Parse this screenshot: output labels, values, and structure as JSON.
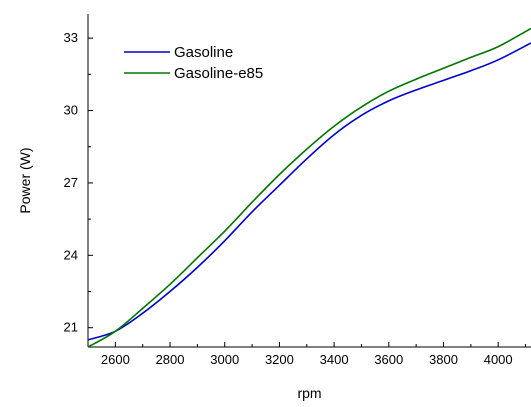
{
  "chart_data": {
    "type": "line",
    "xlabel": "rpm",
    "ylabel": "Power (W)",
    "xlim": [
      2500,
      4120
    ],
    "ylim": [
      20.2,
      34.0
    ],
    "xticks": [
      2600,
      2800,
      3000,
      3200,
      3400,
      3600,
      3800,
      4000
    ],
    "yticks": [
      21,
      24,
      27,
      30,
      33
    ],
    "xtick_labels": [
      "2600",
      "2800",
      "3000",
      "3200",
      "3400",
      "3600",
      "3800",
      "4000"
    ],
    "ytick_labels": [
      "21",
      "24",
      "27",
      "30",
      "33"
    ],
    "grid": false,
    "legend": "top-left",
    "series": [
      {
        "name": "Gasoline",
        "color": "#0000cc",
        "x": [
          2500,
          2600,
          2700,
          2800,
          2900,
          3000,
          3100,
          3200,
          3300,
          3400,
          3500,
          3600,
          3700,
          3800,
          3900,
          4000,
          4120
        ],
        "y": [
          20.5,
          20.85,
          21.6,
          22.5,
          23.5,
          24.6,
          25.8,
          26.9,
          28.0,
          29.0,
          29.8,
          30.4,
          30.85,
          31.25,
          31.65,
          32.1,
          32.8
        ]
      },
      {
        "name": "Gasoline-e85",
        "color": "#007700",
        "x": [
          2500,
          2600,
          2700,
          2800,
          2900,
          3000,
          3100,
          3200,
          3300,
          3400,
          3500,
          3600,
          3700,
          3800,
          3900,
          4000,
          4120
        ],
        "y": [
          20.2,
          20.85,
          21.8,
          22.8,
          23.9,
          25.0,
          26.2,
          27.35,
          28.4,
          29.35,
          30.15,
          30.8,
          31.3,
          31.75,
          32.2,
          32.65,
          33.4
        ]
      }
    ]
  }
}
